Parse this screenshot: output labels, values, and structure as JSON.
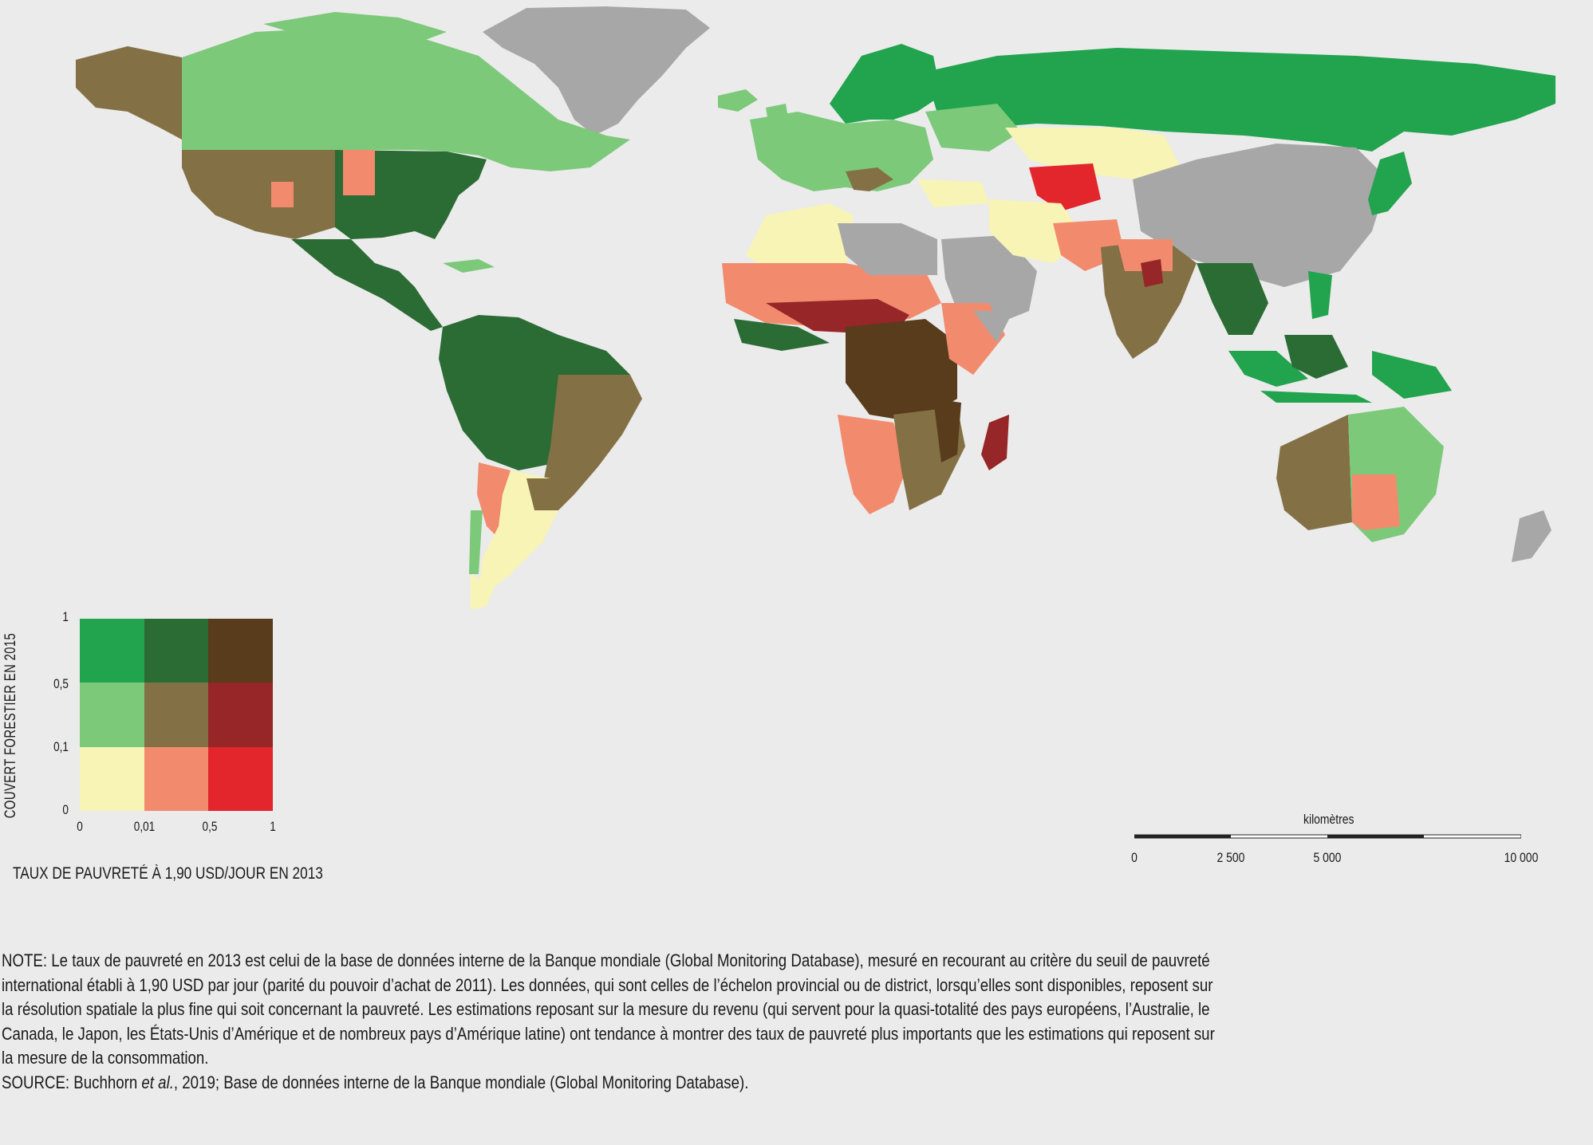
{
  "colors": {
    "ocean": "#ebebeb",
    "no_data": "#a7a7a7",
    "bivariate": [
      [
        "#f7f4b6",
        "#f28b6d",
        "#e3262b"
      ],
      [
        "#7dc97a",
        "#837045",
        "#962627"
      ],
      [
        "#22a34d",
        "#2b6b34",
        "#583c1c"
      ]
    ]
  },
  "legend": {
    "y_title": "COUVERT FORESTIER EN 2015",
    "x_title": "TAUX DE PAUVRETÉ À 1,90 USD/JOUR EN 2013",
    "y_ticks": [
      "1",
      "0,5",
      "0,1",
      "0"
    ],
    "x_ticks": [
      "0",
      "0,01",
      "0,5",
      "1"
    ],
    "y_breaks": [
      0,
      0.1,
      0.5,
      1
    ],
    "x_breaks": [
      0,
      0.01,
      0.5,
      1
    ]
  },
  "scale": {
    "title": "kilomètres",
    "ticks": [
      "0",
      "2 500",
      "5 000",
      "10 000"
    ]
  },
  "note": {
    "lines": [
      "NOTE: Le taux de pauvreté en 2013 est celui de la base de données interne de la Banque mondiale (Global Monitoring Database), mesuré en recourant au critère du seuil de pauvreté",
      "international établi à 1,90 USD par jour (parité du pouvoir d’achat de 2011). Les données, qui sont celles de l’échelon provincial ou de district, lorsqu’elles sont disponibles, reposent sur",
      "la résolution spatiale la plus fine qui soit concernant la pauvreté. Les estimations reposant sur la mesure du revenu (qui servent pour la quasi-totalité des pays européens, l’Australie, le",
      "Canada, le Japon, les États-Unis d’Amérique et de nombreux pays d’Amérique latine) ont tendance à montrer des taux de pauvreté plus importants que les estimations qui reposent sur",
      "la mesure de la consommation."
    ],
    "source_prefix": "SOURCE: Buchhorn ",
    "source_italic": "et al.",
    "source_suffix": ", 2019; Base de données interne de la Banque mondiale (Global Monitoring Database)."
  }
}
